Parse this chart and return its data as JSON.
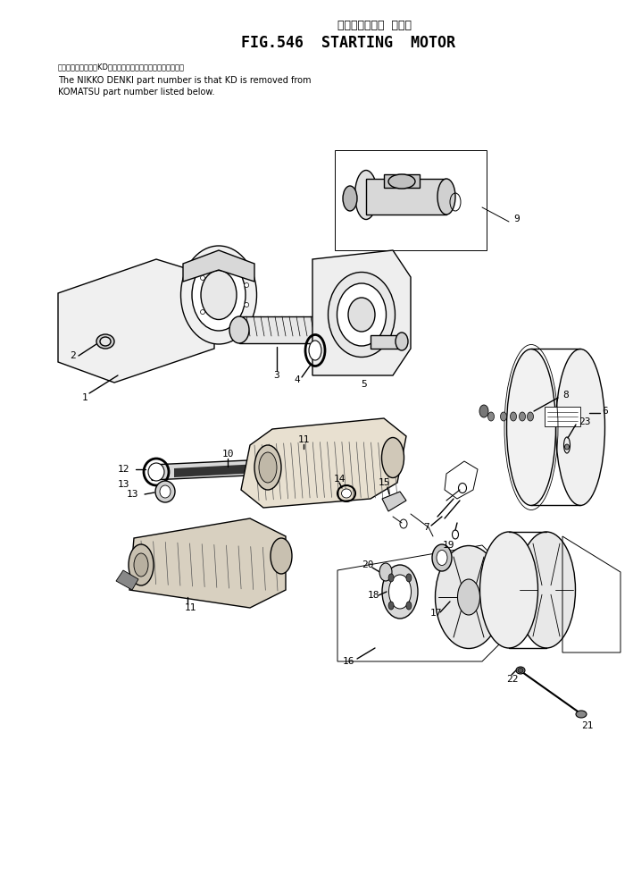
{
  "title_jp": "スターティング  モータ",
  "title_en": "FIG.546  STARTING  MOTOR",
  "note_jp": "品番のメーカー記号KDを除いたものが日尿電機の品番です。",
  "note_en1": "The NIKKO DENKI part number is that KD is removed from",
  "note_en2": "KOMATSU part number listed below.",
  "bg_color": "#ffffff",
  "lc": "#000000",
  "title_fs": 12,
  "jp_title_fs": 9,
  "note_fs": 7,
  "lbl_fs": 8
}
